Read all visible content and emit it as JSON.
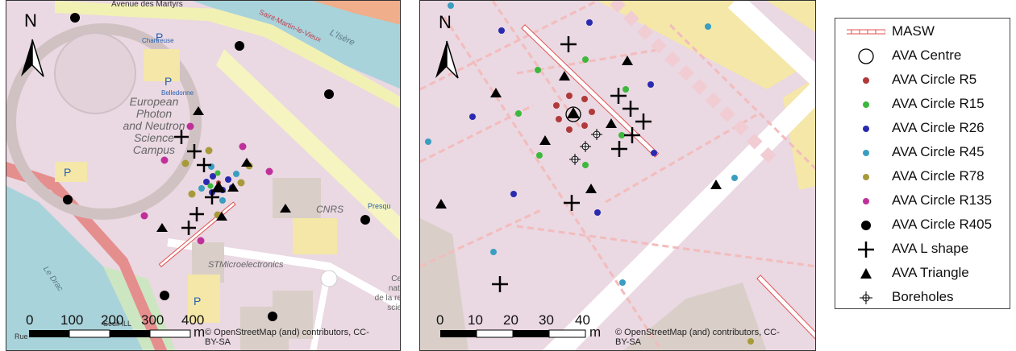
{
  "left_map": {
    "street_avenue": "Avenue des Martyrs",
    "street_saint_martin": "Saint-Martin-le-Vieux",
    "label_isere": "L'Isère",
    "label_chartreuse": "Chartreuse",
    "label_belledonne": "Belledonne",
    "label_campus_lines": [
      "European",
      "Photon",
      "and Neutron",
      "Science",
      "Campus"
    ],
    "label_cnrs": "CNRS",
    "label_stm": "STMicroelectronics",
    "label_presqu": "Presqu",
    "label_centre": [
      "Ce",
      "nati",
      "de la re",
      "scie"
    ],
    "label_drac": "Le Drac",
    "label_seuil": "Seuil ILL",
    "label_rue": "Rue",
    "scale": {
      "ticks": [
        "0",
        "100",
        "200",
        "300",
        "400"
      ],
      "unit": "m"
    },
    "attribution": [
      "© OpenStreetMap (and) contributors, CC-",
      "BY-SA"
    ],
    "north_label": "N"
  },
  "right_map": {
    "scale": {
      "ticks": [
        "0",
        "10",
        "20",
        "30",
        "40"
      ],
      "unit": "m"
    },
    "attribution": [
      "© OpenStreetMap (and) contributors, CC-",
      "BY-SA"
    ],
    "north_label": "N"
  },
  "legend": {
    "items": [
      {
        "label": "MASW",
        "symbol": "masw-line",
        "color": "#e05050"
      },
      {
        "label": "AVA Centre",
        "symbol": "open-circle",
        "color": "#000000"
      },
      {
        "label": "AVA Circle R5",
        "symbol": "dot",
        "color": "#b03a3a"
      },
      {
        "label": "AVA Circle R15",
        "symbol": "dot",
        "color": "#3cb83c"
      },
      {
        "label": "AVA Circle R26",
        "symbol": "dot",
        "color": "#2a2ab0"
      },
      {
        "label": "AVA Circle R45",
        "symbol": "dot",
        "color": "#3a9ec0"
      },
      {
        "label": "AVA Circle R78",
        "symbol": "dot",
        "color": "#a89a3a"
      },
      {
        "label": "AVA Circle R135",
        "symbol": "dot",
        "color": "#c0309a"
      },
      {
        "label": "AVA Circle R405",
        "symbol": "dot",
        "color": "#000000"
      },
      {
        "label": "AVA L shape",
        "symbol": "cross",
        "color": "#000000"
      },
      {
        "label": "AVA Triangle",
        "symbol": "triangle",
        "color": "#000000"
      },
      {
        "label": "Boreholes",
        "symbol": "borehole",
        "color": "#000000"
      }
    ]
  }
}
